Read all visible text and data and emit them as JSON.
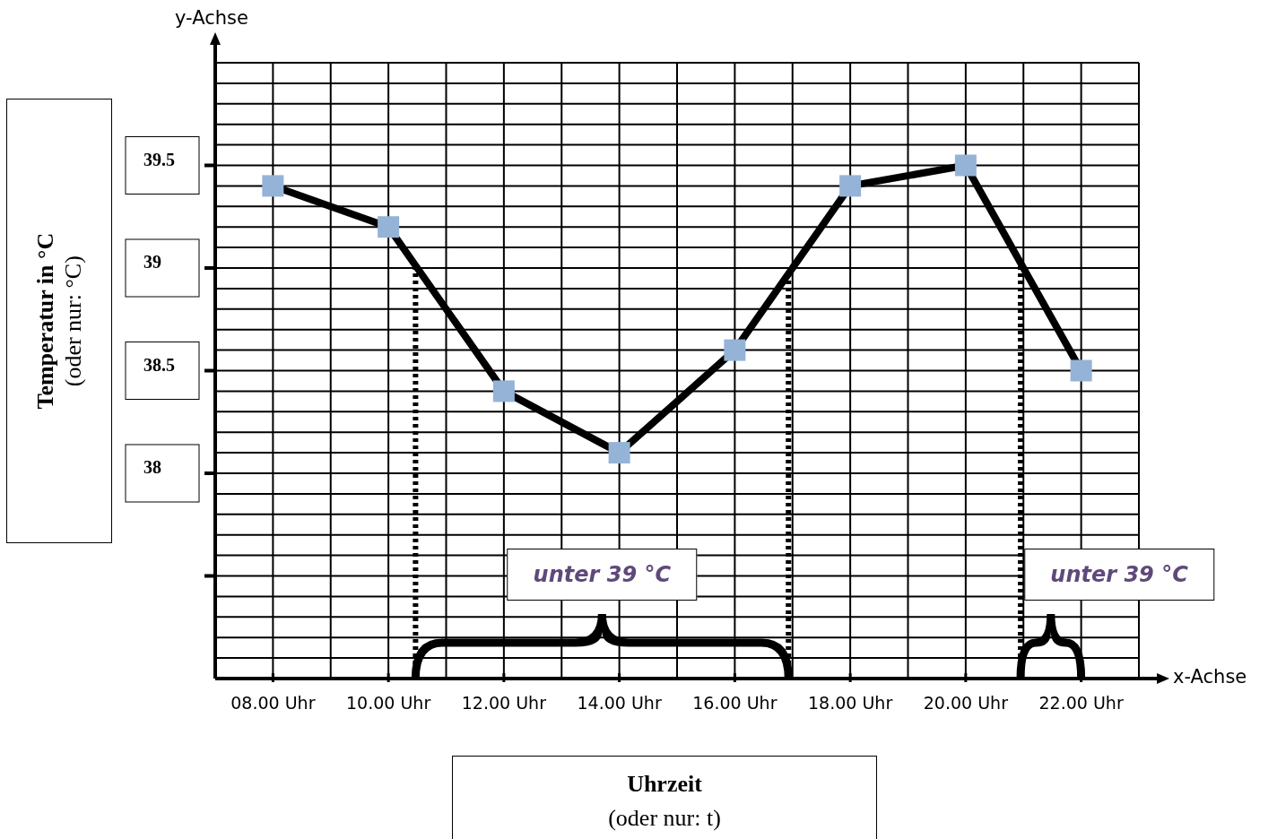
{
  "chart_data": {
    "type": "line",
    "xlabel": "Uhrzeit\n(oder nur: t)",
    "ylabel": "Temperatur in °C\n(oder nur: °C)",
    "x": [
      8,
      10,
      12,
      14,
      16,
      18,
      20,
      22
    ],
    "series": [
      {
        "color": "#000000",
        "colors": [
          "#95b3d7",
          "#95b3d7",
          "#95b3d7",
          "#95b3d7",
          "#95b3d7",
          "#95b3d7",
          "#95b3d7",
          "#95b3d7"
        ],
        "values": [
          39.4,
          39.2,
          38.4,
          38.1,
          38.6,
          39.4,
          39.5,
          38.5
        ]
      }
    ],
    "xlim": [
      7,
      23
    ],
    "xticks": [
      {
        "value": 7,
        "label": null
      },
      {
        "value": 8,
        "label": "08.00 Uhr"
      },
      {
        "value": 9,
        "label": null
      },
      {
        "value": 10,
        "label": "10.00 Uhr"
      },
      {
        "value": 11,
        "label": null
      },
      {
        "value": 12,
        "label": "12.00 Uhr"
      },
      {
        "value": 13,
        "label": null
      },
      {
        "value": 14,
        "label": "14.00 Uhr"
      },
      {
        "value": 15,
        "label": null
      },
      {
        "value": 16,
        "label": "16.00 Uhr"
      },
      {
        "value": 17,
        "label": null
      },
      {
        "value": 18,
        "label": "18.00 Uhr"
      },
      {
        "value": 19,
        "label": null
      },
      {
        "value": 20,
        "label": "20.00 Uhr"
      },
      {
        "value": 21,
        "label": null
      },
      {
        "value": 22,
        "label": "22.00 Uhr"
      },
      {
        "value": 23,
        "label": null
      }
    ],
    "ylim": [
      37,
      40
    ],
    "yticks": [
      {
        "value": 37,
        "label": null
      },
      {
        "value": 37.1,
        "label": null
      },
      {
        "value": 37.2,
        "label": null
      },
      {
        "value": 37.3,
        "label": null
      },
      {
        "value": 37.4,
        "label": null
      },
      {
        "value": 37.5,
        "label": null
      },
      {
        "value": 37.6,
        "label": null
      },
      {
        "value": 37.7,
        "label": null
      },
      {
        "value": 37.8,
        "label": null
      },
      {
        "value": 37.9,
        "label": null
      },
      38,
      {
        "value": 38.1,
        "label": null
      },
      {
        "value": 38.2,
        "label": null
      },
      {
        "value": 38.3,
        "label": null
      },
      {
        "value": 38.4,
        "label": null
      },
      38.5,
      {
        "value": 38.6,
        "label": null
      },
      {
        "value": 38.7,
        "label": null
      },
      {
        "value": 38.8,
        "label": null
      },
      {
        "value": 38.9,
        "label": null
      },
      39,
      {
        "value": 39.1,
        "label": null
      },
      {
        "value": 39.2,
        "label": null
      },
      {
        "value": 39.3,
        "label": null
      },
      {
        "value": 39.4,
        "label": null
      },
      39.5,
      {
        "value": 39.6,
        "label": null
      },
      {
        "value": 39.7,
        "label": null
      },
      {
        "value": 39.8,
        "label": null
      },
      {
        "value": 39.9,
        "label": null
      },
      {
        "value": 40,
        "label": null
      }
    ],
    "grid": true,
    "marker": "square",
    "line_style": "solid",
    "ref_lines": [
      {
        "axis": "x",
        "value": 10.47,
        "line_style": "dotted"
      },
      {
        "axis": "x",
        "value": 16.93,
        "line_style": "dotted"
      },
      {
        "axis": "x",
        "value": 20.95,
        "line_style": "dotted"
      }
    ],
    "annotations": [
      "y-Achse",
      "x-Achse",
      "unter 39 °C",
      "unter 39 °C"
    ]
  }
}
